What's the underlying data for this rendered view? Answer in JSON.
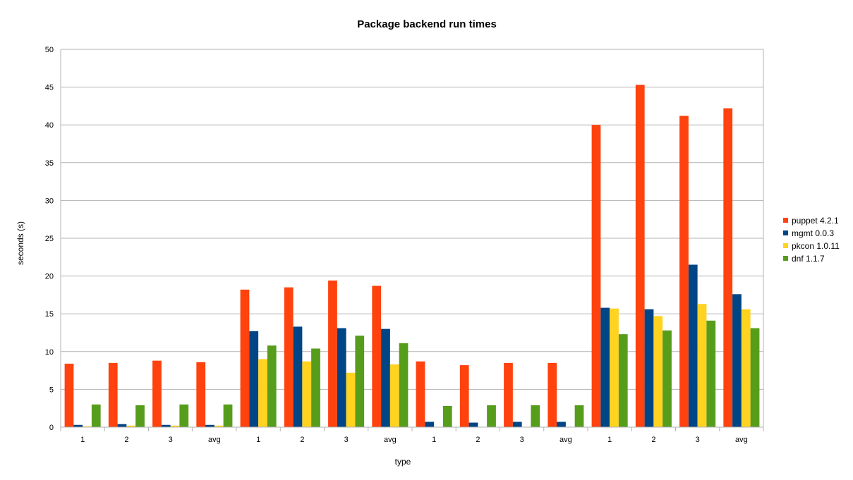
{
  "chart_data": {
    "type": "bar",
    "title": "Package backend run times",
    "xlabel": "type",
    "ylabel": "seconds (s)",
    "ylim": [
      0,
      50
    ],
    "yticks": [
      0,
      5,
      10,
      15,
      20,
      25,
      30,
      35,
      40,
      45,
      50
    ],
    "categories": [
      "1",
      "2",
      "3",
      "avg",
      "1",
      "2",
      "3",
      "avg",
      "1",
      "2",
      "3",
      "avg",
      "1",
      "2",
      "3",
      "avg"
    ],
    "grid": true,
    "legend_position": "right",
    "series": [
      {
        "name": "puppet 4.2.1",
        "color": "#ff420e",
        "values": [
          8.4,
          8.5,
          8.8,
          8.6,
          18.2,
          18.5,
          19.4,
          18.7,
          8.7,
          8.2,
          8.5,
          8.5,
          40.0,
          45.3,
          41.2,
          42.2
        ]
      },
      {
        "name": "mgmt 0.0.3",
        "color": "#004586",
        "values": [
          0.3,
          0.4,
          0.3,
          0.3,
          12.7,
          13.3,
          13.1,
          13.0,
          0.7,
          0.6,
          0.7,
          0.7,
          15.8,
          15.6,
          21.5,
          17.6
        ]
      },
      {
        "name": "pkcon 1.0.11",
        "color": "#ffd320",
        "values": [
          0.1,
          0.2,
          0.2,
          0.2,
          9.0,
          8.7,
          7.2,
          8.3,
          0.0,
          0.0,
          0.0,
          0.0,
          15.7,
          14.7,
          16.3,
          15.6
        ]
      },
      {
        "name": "dnf 1.1.7",
        "color": "#579d1c",
        "values": [
          3.0,
          2.9,
          3.0,
          3.0,
          10.8,
          10.4,
          12.1,
          11.1,
          2.8,
          2.9,
          2.9,
          2.9,
          12.3,
          12.8,
          14.1,
          13.1
        ]
      }
    ]
  }
}
